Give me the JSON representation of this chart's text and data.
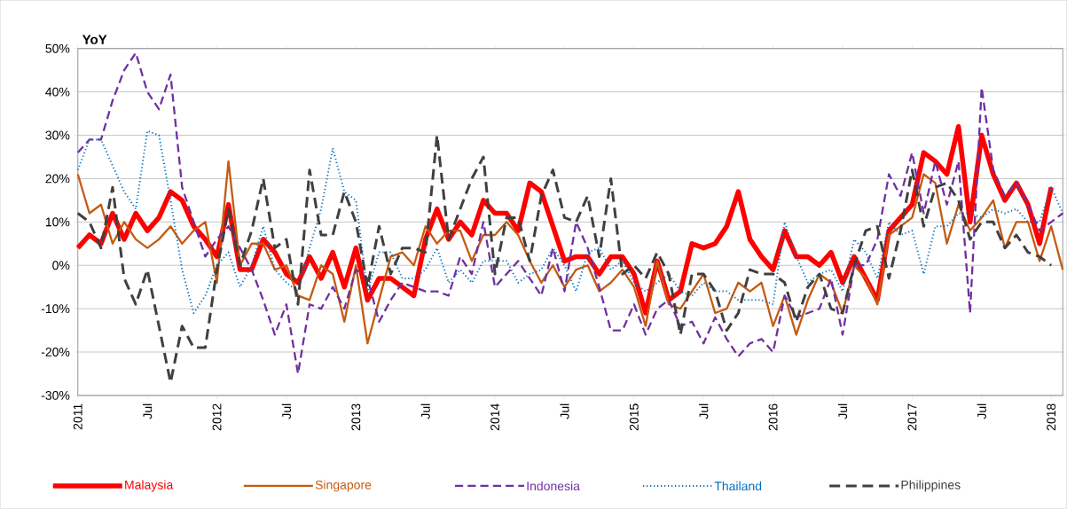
{
  "chart_data": {
    "type": "line",
    "ylabel": "YoY",
    "x": [
      "2011-01",
      "2011-02",
      "2011-03",
      "2011-04",
      "2011-05",
      "2011-06",
      "2011-07",
      "2011-08",
      "2011-09",
      "2011-10",
      "2011-11",
      "2011-12",
      "2012-01",
      "2012-02",
      "2012-03",
      "2012-04",
      "2012-05",
      "2012-06",
      "2012-07",
      "2012-08",
      "2012-09",
      "2012-10",
      "2012-11",
      "2012-12",
      "2013-01",
      "2013-02",
      "2013-03",
      "2013-04",
      "2013-05",
      "2013-06",
      "2013-07",
      "2013-08",
      "2013-09",
      "2013-10",
      "2013-11",
      "2013-12",
      "2014-01",
      "2014-02",
      "2014-03",
      "2014-04",
      "2014-05",
      "2014-06",
      "2014-07",
      "2014-08",
      "2014-09",
      "2014-10",
      "2014-11",
      "2014-12",
      "2015-01",
      "2015-02",
      "2015-03",
      "2015-04",
      "2015-05",
      "2015-06",
      "2015-07",
      "2015-08",
      "2015-09",
      "2015-10",
      "2015-11",
      "2015-12",
      "2016-01",
      "2016-02",
      "2016-03",
      "2016-04",
      "2016-05",
      "2016-06",
      "2016-07",
      "2016-08",
      "2016-09",
      "2016-10",
      "2016-11",
      "2016-12",
      "2017-01",
      "2017-02",
      "2017-03",
      "2017-04",
      "2017-05",
      "2017-06",
      "2017-07",
      "2017-08",
      "2017-09",
      "2017-10",
      "2017-11",
      "2017-12",
      "2018-01",
      "2018-02"
    ],
    "series": [
      {
        "name": "Malaysia",
        "color": "#ff0000",
        "line_style": "solid",
        "values": [
          4,
          7,
          5,
          12,
          6,
          12,
          8,
          11,
          17,
          15,
          9,
          6,
          2,
          14,
          -1,
          -1,
          6,
          3,
          -2,
          -4,
          2,
          -3,
          3,
          -5,
          4,
          -8,
          -3,
          -3,
          -5,
          -7,
          6,
          13,
          6,
          10,
          7,
          15,
          12,
          12,
          8,
          19,
          17,
          9,
          1,
          2,
          2,
          -2,
          2,
          2,
          -2,
          -11,
          1,
          -8,
          -6,
          5,
          4,
          5,
          9,
          17,
          6,
          2,
          -1,
          8,
          2,
          2,
          0,
          3,
          -4,
          2,
          -3,
          -8,
          8,
          11,
          14,
          26,
          24,
          21,
          32,
          10,
          30,
          21,
          15,
          19,
          14,
          5,
          18,
          null
        ]
      },
      {
        "name": "Singapore",
        "color": "#c55a11",
        "line_style": "solid",
        "values": [
          21,
          12,
          14,
          5,
          10,
          6,
          4,
          6,
          9,
          5,
          8,
          10,
          -4,
          24,
          0,
          5,
          5,
          -1,
          0,
          -7,
          -8,
          0,
          -2,
          -13,
          0,
          -18,
          -8,
          2,
          3,
          0,
          9,
          5,
          8,
          8,
          1,
          7,
          7,
          10,
          7,
          1,
          -4,
          0,
          -5,
          -1,
          0,
          -6,
          -4,
          -1,
          -5,
          -14,
          1,
          -9,
          -10,
          -6,
          -2,
          -11,
          -10,
          -4,
          -6,
          -4,
          -14,
          -7,
          -16,
          -8,
          -2,
          -4,
          -11,
          0,
          -3,
          -9,
          7,
          9,
          11,
          21,
          19,
          5,
          14,
          8,
          11,
          15,
          4,
          10,
          10,
          1,
          9,
          -1
        ]
      },
      {
        "name": "Indonesia",
        "color": "#7030a0",
        "line_style": "dashed",
        "values": [
          26,
          29,
          29,
          38,
          45,
          49,
          40,
          36,
          44,
          18,
          10,
          2,
          6,
          9,
          4,
          -1,
          -8,
          -16,
          -9,
          -25,
          -9,
          -10,
          -5,
          -10,
          -1,
          -3,
          -13,
          -8,
          -4,
          -5,
          -6,
          -6,
          -7,
          2,
          -2,
          10,
          -5,
          -2,
          1,
          -3,
          -7,
          4,
          -6,
          10,
          4,
          -5,
          -15,
          -15,
          -9,
          -16,
          -10,
          -8,
          -14,
          -13,
          -18,
          -12,
          -17,
          -21,
          -18,
          -17,
          -20,
          -7,
          -12,
          -11,
          -10,
          -3,
          -16,
          0,
          0,
          6,
          21,
          16,
          26,
          12,
          24,
          14,
          24,
          -11,
          41,
          22,
          16,
          19,
          14,
          8,
          10,
          12
        ]
      },
      {
        "name": "Thailand",
        "color": "#0070c0",
        "line_style": "dotted",
        "values": [
          22,
          29,
          29,
          23,
          17,
          13,
          31,
          30,
          15,
          -1,
          -11,
          -7,
          0,
          3,
          -5,
          0,
          9,
          -1,
          -4,
          -6,
          4,
          13,
          27,
          17,
          15,
          -6,
          3,
          3,
          -3,
          -3,
          -1,
          4,
          -4,
          -1,
          -4,
          1,
          1,
          1,
          -4,
          -2,
          -1,
          4,
          0,
          -6,
          3,
          4,
          -1,
          1,
          -4,
          -6,
          -4,
          -2,
          -6,
          -7,
          -4,
          -6,
          -6,
          -8,
          -8,
          -8,
          -9,
          10,
          2,
          -4,
          -2,
          -1,
          -6,
          6,
          3,
          -3,
          10,
          7,
          8,
          -2,
          9,
          9,
          12,
          12,
          11,
          13,
          12,
          13,
          10,
          10,
          18,
          12
        ]
      },
      {
        "name": "Philippines",
        "color": "#404040",
        "line_style": "dashed",
        "values": [
          12,
          10,
          4,
          18,
          -3,
          -9,
          -1,
          -14,
          -27,
          -14,
          -19,
          -19,
          -1,
          13,
          0,
          8,
          20,
          4,
          6,
          -9,
          22,
          7,
          7,
          17,
          10,
          -5,
          9,
          -2,
          4,
          4,
          3,
          30,
          6,
          13,
          20,
          25,
          -2,
          11,
          11,
          1,
          16,
          22,
          11,
          10,
          16,
          2,
          20,
          -2,
          0,
          -3,
          3,
          -2,
          -16,
          -2,
          -2,
          -6,
          -15,
          -11,
          -1,
          -2,
          -2,
          -4,
          -13,
          -5,
          -2,
          -10,
          -11,
          0,
          8,
          9,
          -3,
          8,
          22,
          9,
          18,
          19,
          15,
          6,
          10,
          10,
          4,
          7,
          3,
          2,
          0,
          null
        ]
      }
    ],
    "xlim": [
      "2011-01",
      "2018-02"
    ],
    "xticks": [
      {
        "value": "2011-01",
        "label": "2011"
      },
      {
        "value": "2011-07",
        "label": "Jul"
      },
      {
        "value": "2012-01",
        "label": "2012"
      },
      {
        "value": "2012-07",
        "label": "Jul"
      },
      {
        "value": "2013-01",
        "label": "2013"
      },
      {
        "value": "2013-07",
        "label": "Jul"
      },
      {
        "value": "2014-01",
        "label": "2014"
      },
      {
        "value": "2014-07",
        "label": "Jul"
      },
      {
        "value": "2015-01",
        "label": "2015"
      },
      {
        "value": "2015-07",
        "label": "Jul"
      },
      {
        "value": "2016-01",
        "label": "2016"
      },
      {
        "value": "2016-07",
        "label": "Jul"
      },
      {
        "value": "2017-01",
        "label": "2017"
      },
      {
        "value": "2017-07",
        "label": "Jul"
      },
      {
        "value": "2018-01",
        "label": "2018"
      }
    ],
    "ylim": [
      -30,
      50
    ],
    "yticks": [
      {
        "value": -30,
        "label": "-30%"
      },
      {
        "value": -20,
        "label": "-20%"
      },
      {
        "value": -10,
        "label": "-10%"
      },
      {
        "value": 0,
        "label": "0%"
      },
      {
        "value": 10,
        "label": "10%"
      },
      {
        "value": 20,
        "label": "20%"
      },
      {
        "value": 30,
        "label": "30%"
      },
      {
        "value": 40,
        "label": "40%"
      },
      {
        "value": 50,
        "label": "50%"
      }
    ],
    "grid": "y",
    "legend": "bottom",
    "marker": "none"
  }
}
